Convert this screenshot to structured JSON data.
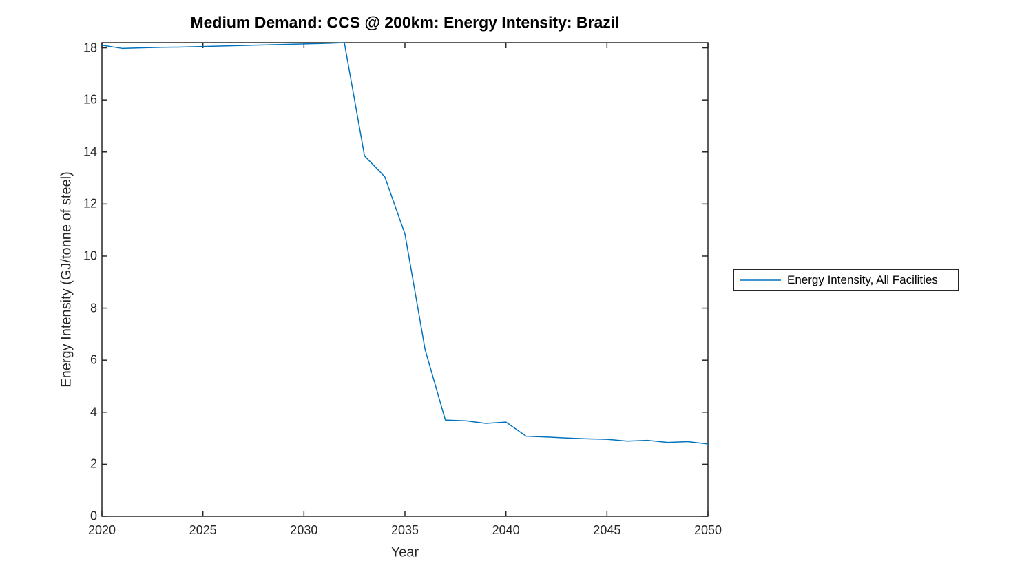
{
  "figure": {
    "background_color": "#ffffff"
  },
  "chart_data": {
    "type": "line",
    "title": "Medium Demand: CCS @ 200km: Energy Intensity: Brazil",
    "xlabel": "Year",
    "ylabel": "Energy Intensity (GJ/tonne of steel)",
    "xlim": [
      2020,
      2050
    ],
    "ylim": [
      0,
      18.2
    ],
    "xticks": [
      2020,
      2025,
      2030,
      2035,
      2040,
      2045,
      2050
    ],
    "yticks": [
      0,
      2,
      4,
      6,
      8,
      10,
      12,
      14,
      16,
      18
    ],
    "grid": false,
    "box": true,
    "axis_color": "#262626",
    "tick_label_color": "#262626",
    "legend_position": "right-outside",
    "x": [
      2020,
      2021,
      2022,
      2023,
      2024,
      2025,
      2026,
      2027,
      2028,
      2029,
      2030,
      2031,
      2032,
      2033,
      2034,
      2035,
      2036,
      2037,
      2038,
      2039,
      2040,
      2041,
      2042,
      2043,
      2044,
      2045,
      2046,
      2047,
      2048,
      2049,
      2050
    ],
    "series": [
      {
        "name": "Energy Intensity, All Facilities",
        "color": "#0072BD",
        "values": [
          18.1,
          17.98,
          18.0,
          18.02,
          18.03,
          18.05,
          18.07,
          18.09,
          18.11,
          18.13,
          18.15,
          18.17,
          18.2,
          13.85,
          13.05,
          10.85,
          6.4,
          3.7,
          3.67,
          3.57,
          3.62,
          3.08,
          3.05,
          3.01,
          2.98,
          2.96,
          2.89,
          2.92,
          2.84,
          2.87,
          2.78
        ]
      }
    ]
  }
}
